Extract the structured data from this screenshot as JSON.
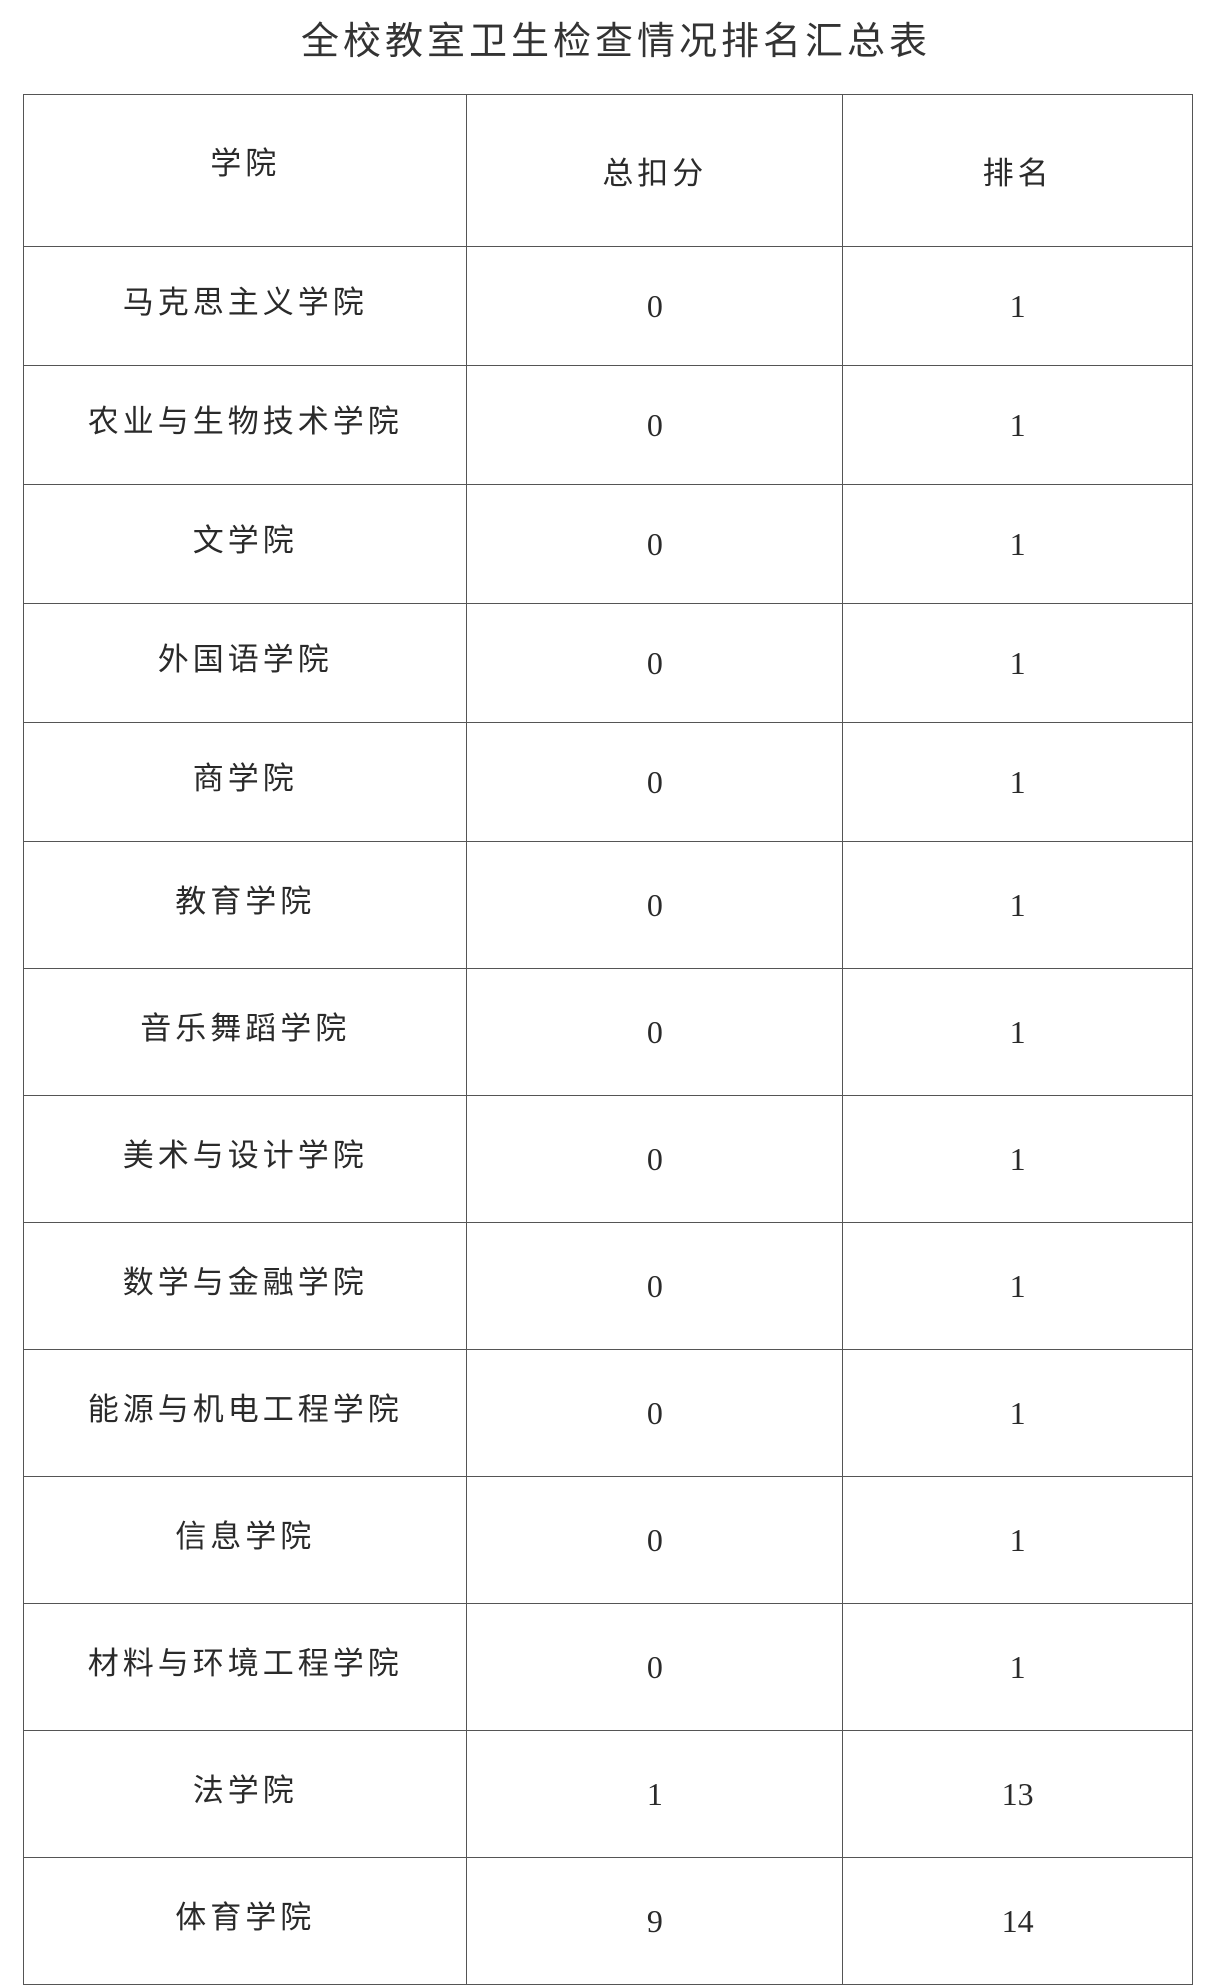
{
  "title": "全校教室卫生检查情况排名汇总表",
  "table": {
    "headers": [
      "学院",
      "总扣分",
      "排名"
    ],
    "rows": [
      {
        "college": "马克思主义学院",
        "deduction": "0",
        "rank": "1"
      },
      {
        "college": "农业与生物技术学院",
        "deduction": "0",
        "rank": "1"
      },
      {
        "college": "文学院",
        "deduction": "0",
        "rank": "1"
      },
      {
        "college": "外国语学院",
        "deduction": "0",
        "rank": "1"
      },
      {
        "college": "商学院",
        "deduction": "0",
        "rank": "1"
      },
      {
        "college": "教育学院",
        "deduction": "0",
        "rank": "1"
      },
      {
        "college": "音乐舞蹈学院",
        "deduction": "0",
        "rank": "1"
      },
      {
        "college": "美术与设计学院",
        "deduction": "0",
        "rank": "1"
      },
      {
        "college": "数学与金融学院",
        "deduction": "0",
        "rank": "1"
      },
      {
        "college": "能源与机电工程学院",
        "deduction": "0",
        "rank": "1"
      },
      {
        "college": "信息学院",
        "deduction": "0",
        "rank": "1"
      },
      {
        "college": "材料与环境工程学院",
        "deduction": "0",
        "rank": "1"
      },
      {
        "college": "法学院",
        "deduction": "1",
        "rank": "13"
      },
      {
        "college": "体育学院",
        "deduction": "9",
        "rank": "14"
      }
    ]
  }
}
